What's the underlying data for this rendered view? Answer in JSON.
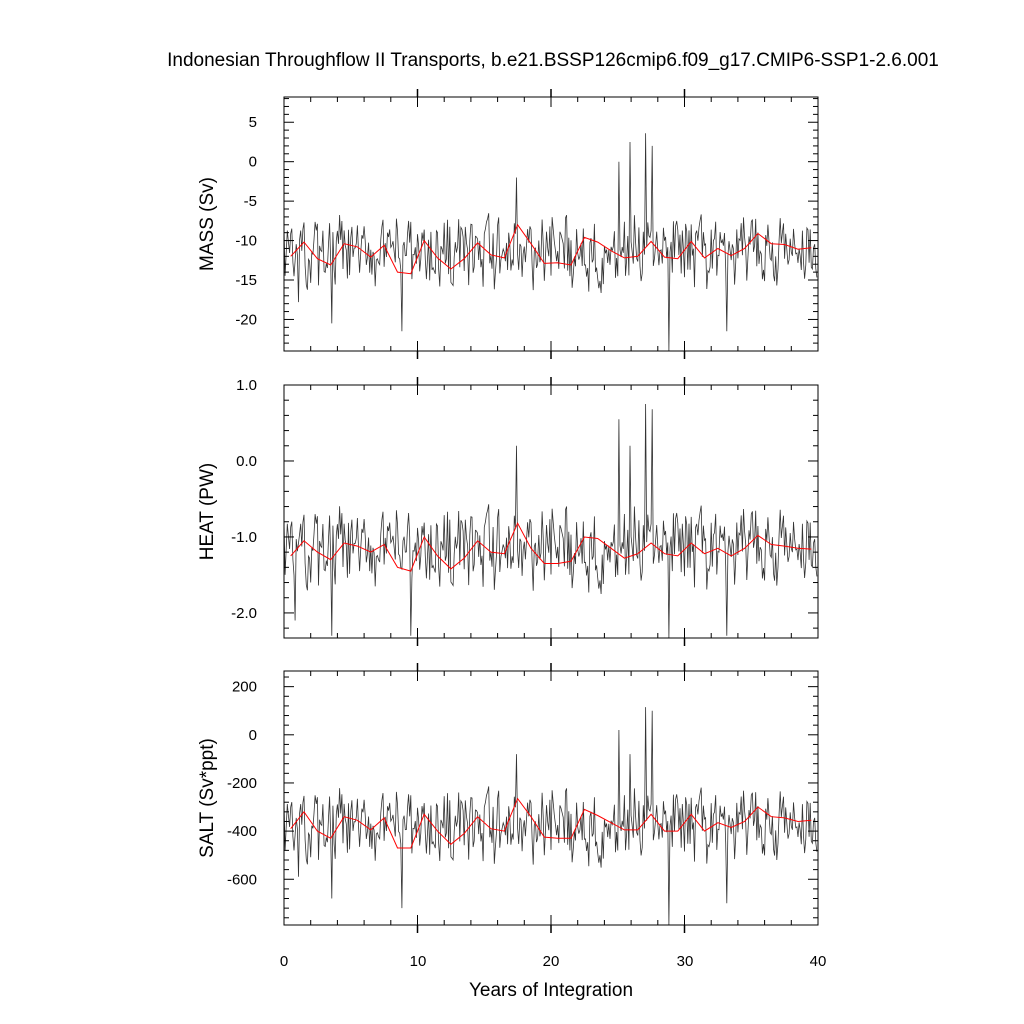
{
  "figure": {
    "title": "Indonesian Throughflow II Transports, b.e21.BSSP126cmip6.f09_g17.CMIP6-SSP1-2.6.001",
    "xlabel": "Years of Integration",
    "xticks": [
      "0",
      "10",
      "20",
      "30",
      "40"
    ]
  },
  "colors": {
    "raw": "#333333",
    "smoothed": "#ff0000",
    "axes": "#000000"
  },
  "chart_data": [
    {
      "type": "line",
      "ylabel": "MASS (Sv)",
      "xlim": [
        0,
        40
      ],
      "ylim": [
        -24,
        8.2
      ],
      "yticks": [
        5,
        0,
        -5,
        -10,
        -15,
        -20
      ],
      "ytick_labels": [
        "5",
        "0",
        "-5",
        "-10",
        "-15",
        "-20"
      ],
      "grid": false,
      "series": [
        {
          "role": "monthly",
          "n": 480,
          "mean": -11.5,
          "amp": 3.6,
          "spikes": [
            [
              17.4,
              -2
            ],
            [
              25.1,
              0
            ],
            [
              25.9,
              2.5
            ],
            [
              27.1,
              3.6
            ],
            [
              27.6,
              2
            ],
            [
              28.8,
              -24
            ],
            [
              33.2,
              -21.5
            ],
            [
              8.8,
              -21.5
            ],
            [
              3.6,
              -20.5
            ],
            [
              1.1,
              -17.8
            ]
          ]
        },
        {
          "role": "annual_running",
          "x": [
            0.5,
            1.5,
            2.5,
            3.5,
            4.5,
            5.5,
            6.5,
            7.5,
            8.5,
            9.5,
            10.5,
            11.5,
            12.5,
            13.5,
            14.5,
            15.5,
            16.5,
            17.5,
            18.5,
            19.5,
            20.5,
            21.5,
            22.5,
            23.5,
            24.5,
            25.5,
            26.5,
            27.5,
            28.5,
            29.5,
            30.5,
            31.5,
            32.5,
            33.5,
            34.5,
            35.5,
            36.5,
            37.5,
            38.5,
            39.5
          ],
          "y": [
            -12.0,
            -10.2,
            -12.3,
            -13.1,
            -10.4,
            -10.8,
            -12.1,
            -10.6,
            -14.0,
            -14.2,
            -10.0,
            -12.2,
            -13.6,
            -12.3,
            -10.3,
            -11.8,
            -12.2,
            -8.0,
            -10.4,
            -12.9,
            -12.8,
            -13.1,
            -9.6,
            -10.2,
            -11.3,
            -12.2,
            -12.0,
            -10.1,
            -12.1,
            -12.3,
            -10.1,
            -12.2,
            -11.0,
            -11.9,
            -11.0,
            -9.1,
            -10.4,
            -10.5,
            -11.1,
            -10.9
          ]
        }
      ]
    },
    {
      "type": "line",
      "ylabel": "HEAT (PW)",
      "xlim": [
        0,
        40
      ],
      "ylim": [
        -2.33,
        1.0
      ],
      "yticks": [
        1.0,
        0.0,
        -1.0,
        -2.0
      ],
      "ytick_labels": [
        "1.0",
        "0.0",
        "-1.0",
        "-2.0"
      ],
      "grid": false,
      "series": [
        {
          "role": "monthly",
          "n": 480,
          "mean": -1.15,
          "amp": 0.42,
          "spikes": [
            [
              17.4,
              0.2
            ],
            [
              25.1,
              0.55
            ],
            [
              25.9,
              0.2
            ],
            [
              27.1,
              0.75
            ],
            [
              27.6,
              0.68
            ],
            [
              28.8,
              -2.33
            ],
            [
              33.2,
              -2.3
            ],
            [
              9.5,
              -2.3
            ],
            [
              3.6,
              -2.3
            ],
            [
              0.8,
              -2.1
            ]
          ]
        },
        {
          "role": "annual_running",
          "x": [
            0.5,
            1.5,
            2.5,
            3.5,
            4.5,
            5.5,
            6.5,
            7.5,
            8.5,
            9.5,
            10.5,
            11.5,
            12.5,
            13.5,
            14.5,
            15.5,
            16.5,
            17.5,
            18.5,
            19.5,
            20.5,
            21.5,
            22.5,
            23.5,
            24.5,
            25.5,
            26.5,
            27.5,
            28.5,
            29.5,
            30.5,
            31.5,
            32.5,
            33.5,
            34.5,
            35.5,
            36.5,
            37.5,
            38.5,
            39.5
          ],
          "y": [
            -1.25,
            -1.05,
            -1.2,
            -1.3,
            -1.08,
            -1.12,
            -1.2,
            -1.1,
            -1.4,
            -1.45,
            -1.0,
            -1.25,
            -1.42,
            -1.28,
            -1.05,
            -1.2,
            -1.22,
            -0.82,
            -1.15,
            -1.35,
            -1.35,
            -1.32,
            -1.0,
            -1.02,
            -1.15,
            -1.28,
            -1.22,
            -1.08,
            -1.22,
            -1.25,
            -1.08,
            -1.22,
            -1.15,
            -1.25,
            -1.15,
            -0.98,
            -1.1,
            -1.12,
            -1.15,
            -1.16
          ]
        }
      ]
    },
    {
      "type": "line",
      "ylabel": "SALT (Sv*ppt)",
      "xlim": [
        0,
        40
      ],
      "ylim": [
        -790,
        265
      ],
      "yticks": [
        200,
        0,
        -200,
        -400,
        -600
      ],
      "ytick_labels": [
        "200",
        "0",
        "-200",
        "-400",
        "-600"
      ],
      "grid": false,
      "series": [
        {
          "role": "monthly",
          "n": 480,
          "mean": -380,
          "amp": 120,
          "spikes": [
            [
              17.4,
              -80
            ],
            [
              25.1,
              20
            ],
            [
              25.9,
              -80
            ],
            [
              27.1,
              115
            ],
            [
              27.6,
              100
            ],
            [
              28.8,
              -790
            ],
            [
              33.2,
              -700
            ],
            [
              8.8,
              -720
            ],
            [
              3.6,
              -680
            ],
            [
              1.1,
              -590
            ]
          ]
        },
        {
          "role": "annual_running",
          "x": [
            0.5,
            1.5,
            2.5,
            3.5,
            4.5,
            5.5,
            6.5,
            7.5,
            8.5,
            9.5,
            10.5,
            11.5,
            12.5,
            13.5,
            14.5,
            15.5,
            16.5,
            17.5,
            18.5,
            19.5,
            20.5,
            21.5,
            22.5,
            23.5,
            24.5,
            25.5,
            26.5,
            27.5,
            28.5,
            29.5,
            30.5,
            31.5,
            32.5,
            33.5,
            34.5,
            35.5,
            36.5,
            37.5,
            38.5,
            39.5
          ],
          "y": [
            -390,
            -320,
            -400,
            -430,
            -340,
            -355,
            -395,
            -345,
            -470,
            -470,
            -330,
            -400,
            -455,
            -410,
            -340,
            -390,
            -400,
            -265,
            -340,
            -425,
            -430,
            -430,
            -310,
            -335,
            -365,
            -395,
            -395,
            -330,
            -400,
            -400,
            -330,
            -400,
            -365,
            -385,
            -360,
            -300,
            -340,
            -345,
            -360,
            -355
          ]
        }
      ]
    }
  ]
}
